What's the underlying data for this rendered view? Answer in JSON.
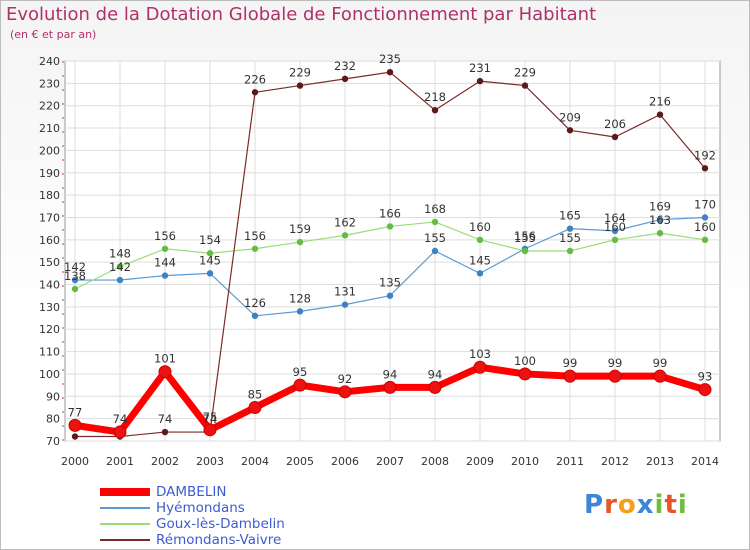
{
  "title": "Evolution de la Dotation Globale de Fonctionnement par Habitant",
  "subtitle": "(en € et par an)",
  "brand": {
    "letters": [
      "P",
      "r",
      "o",
      "x",
      "i",
      "t",
      "i"
    ],
    "colors": [
      "#3a86d8",
      "#e8552a",
      "#f2a01c",
      "#3a86d8",
      "#6cbf3a",
      "#e8552a",
      "#6cbf3a"
    ]
  },
  "chart_data": {
    "type": "line",
    "x": [
      "2000",
      "2001",
      "2002",
      "2003",
      "2004",
      "2005",
      "2006",
      "2007",
      "2008",
      "2009",
      "2010",
      "2011",
      "2012",
      "2013",
      "2014"
    ],
    "ylim": [
      70,
      240
    ],
    "yticks": [
      70,
      80,
      90,
      100,
      110,
      120,
      130,
      140,
      150,
      160,
      170,
      180,
      190,
      200,
      210,
      220,
      230,
      240
    ],
    "grid": true,
    "legend_position": "bottom-left",
    "series": [
      {
        "name": "DAMBELIN",
        "color": "#ff0000",
        "marker": "#ee1111",
        "width": 7,
        "values": [
          77,
          74,
          101,
          75,
          85,
          95,
          92,
          94,
          94,
          103,
          100,
          99,
          99,
          99,
          93
        ],
        "labels": [
          "77",
          "74",
          "101",
          "75",
          "85",
          "95",
          "92",
          "94",
          "94",
          "103",
          "100",
          "99",
          "99",
          "99",
          "93"
        ]
      },
      {
        "name": "Hyémondans",
        "color": "#5a9bd4",
        "marker": "#3f82c4",
        "width": 1.2,
        "values": [
          142,
          142,
          144,
          145,
          126,
          128,
          131,
          135,
          155,
          145,
          156,
          165,
          164,
          169,
          170
        ],
        "labels": [
          "142",
          "142",
          "144",
          "145",
          "126",
          "128",
          "131",
          "135",
          "155",
          "145",
          "156",
          "165",
          "164",
          "169",
          "170"
        ]
      },
      {
        "name": "Goux-lès-Dambelin",
        "color": "#99dd77",
        "marker": "#66bb44",
        "width": 1.2,
        "values": [
          138,
          148,
          156,
          154,
          156,
          159,
          162,
          166,
          168,
          160,
          155,
          155,
          160,
          163,
          160
        ],
        "labels": [
          "138",
          "148",
          "156",
          "154",
          "156",
          "159",
          "162",
          "166",
          "168",
          "160",
          "155",
          "155",
          "160",
          "163",
          "160"
        ]
      },
      {
        "name": "Rémondans-Vaivre",
        "color": "#7b2a2a",
        "marker": "#5a1a1a",
        "width": 1.2,
        "values": [
          72,
          72,
          74,
          74,
          226,
          229,
          232,
          235,
          218,
          231,
          229,
          209,
          206,
          216,
          192
        ],
        "labels": [
          "",
          "",
          "74",
          "74",
          "226",
          "229",
          "232",
          "235",
          "218",
          "231",
          "229",
          "209",
          "206",
          "216",
          "192"
        ]
      }
    ]
  }
}
